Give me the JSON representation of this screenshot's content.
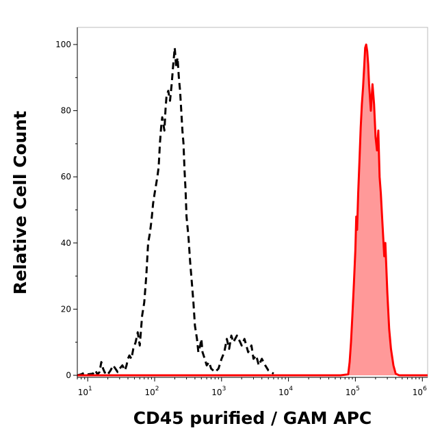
{
  "chart_data": {
    "type": "area",
    "title": "",
    "xlabel": "CD45 purified / GAM APC",
    "ylabel": "Relative Cell Count",
    "x_scale": "log",
    "xlim": [
      7,
      1200000
    ],
    "ylim": [
      0,
      100
    ],
    "grid": false,
    "x_ticks": [
      {
        "value": 10,
        "base": "10",
        "exp": "1"
      },
      {
        "value": 100,
        "base": "10",
        "exp": "2"
      },
      {
        "value": 1000,
        "base": "10",
        "exp": "3"
      },
      {
        "value": 10000,
        "base": "10",
        "exp": "4"
      },
      {
        "value": 100000,
        "base": "10",
        "exp": "5"
      },
      {
        "value": 1000000,
        "base": "10",
        "exp": "6"
      }
    ],
    "y_ticks": [
      {
        "value": 0,
        "label": "0"
      },
      {
        "value": 20,
        "label": "20"
      },
      {
        "value": 40,
        "label": "40"
      },
      {
        "value": 60,
        "label": "60"
      },
      {
        "value": 80,
        "label": "80"
      },
      {
        "value": 100,
        "label": "100"
      }
    ],
    "series": [
      {
        "style": "dashed",
        "color": "#000000",
        "fill": "none",
        "points": [
          [
            7,
            0
          ],
          [
            8,
            0.3
          ],
          [
            9,
            0.8
          ],
          [
            10,
            0.3
          ],
          [
            12,
            0.5
          ],
          [
            13,
            1.5
          ],
          [
            14,
            0.3
          ],
          [
            15,
            1
          ],
          [
            16,
            4
          ],
          [
            17,
            2
          ],
          [
            18,
            0.8
          ],
          [
            19,
            1
          ],
          [
            20,
            0.3
          ],
          [
            22,
            1.5
          ],
          [
            24,
            3
          ],
          [
            26,
            2
          ],
          [
            28,
            1
          ],
          [
            30,
            2
          ],
          [
            33,
            3
          ],
          [
            36,
            1.5
          ],
          [
            38,
            3
          ],
          [
            40,
            5
          ],
          [
            42,
            6
          ],
          [
            45,
            5
          ],
          [
            48,
            8
          ],
          [
            52,
            10
          ],
          [
            56,
            13
          ],
          [
            60,
            9
          ],
          [
            65,
            18
          ],
          [
            70,
            22
          ],
          [
            75,
            30
          ],
          [
            80,
            40
          ],
          [
            85,
            43
          ],
          [
            90,
            47
          ],
          [
            95,
            52
          ],
          [
            100,
            55
          ],
          [
            110,
            60
          ],
          [
            115,
            63
          ],
          [
            120,
            70
          ],
          [
            125,
            75
          ],
          [
            130,
            78
          ],
          [
            140,
            74
          ],
          [
            145,
            80
          ],
          [
            150,
            84
          ],
          [
            160,
            86
          ],
          [
            170,
            83
          ],
          [
            180,
            88
          ],
          [
            190,
            94
          ],
          [
            200,
            99
          ],
          [
            210,
            93
          ],
          [
            220,
            96
          ],
          [
            230,
            90
          ],
          [
            240,
            86
          ],
          [
            250,
            80
          ],
          [
            260,
            74
          ],
          [
            270,
            70
          ],
          [
            280,
            62
          ],
          [
            290,
            56
          ],
          [
            300,
            48
          ],
          [
            320,
            42
          ],
          [
            340,
            34
          ],
          [
            360,
            28
          ],
          [
            380,
            22
          ],
          [
            400,
            15
          ],
          [
            430,
            11
          ],
          [
            450,
            7
          ],
          [
            480,
            9
          ],
          [
            500,
            11
          ],
          [
            520,
            7
          ],
          [
            560,
            5
          ],
          [
            600,
            3
          ],
          [
            650,
            4
          ],
          [
            700,
            2
          ],
          [
            800,
            1
          ],
          [
            900,
            2
          ],
          [
            1000,
            5
          ],
          [
            1100,
            7
          ],
          [
            1200,
            11
          ],
          [
            1300,
            8
          ],
          [
            1400,
            12
          ],
          [
            1500,
            10
          ],
          [
            1700,
            12
          ],
          [
            1900,
            10
          ],
          [
            2000,
            9
          ],
          [
            2200,
            11
          ],
          [
            2500,
            7
          ],
          [
            2800,
            9
          ],
          [
            3000,
            5
          ],
          [
            3300,
            6
          ],
          [
            3600,
            3
          ],
          [
            4000,
            5
          ],
          [
            4500,
            3
          ],
          [
            5000,
            1.5
          ],
          [
            6000,
            0.5
          ]
        ]
      },
      {
        "style": "solid",
        "color": "#ff0000",
        "fill": "#ff9999",
        "points": [
          [
            7,
            0
          ],
          [
            60000,
            0
          ],
          [
            78000,
            0.3
          ],
          [
            82000,
            4
          ],
          [
            86000,
            10
          ],
          [
            90000,
            18
          ],
          [
            95000,
            28
          ],
          [
            100000,
            38
          ],
          [
            103000,
            48
          ],
          [
            106000,
            44
          ],
          [
            110000,
            55
          ],
          [
            115000,
            65
          ],
          [
            120000,
            75
          ],
          [
            125000,
            82
          ],
          [
            130000,
            87
          ],
          [
            135000,
            93
          ],
          [
            140000,
            99
          ],
          [
            145000,
            100
          ],
          [
            150000,
            98
          ],
          [
            155000,
            94
          ],
          [
            160000,
            88
          ],
          [
            170000,
            80
          ],
          [
            180000,
            88
          ],
          [
            190000,
            82
          ],
          [
            200000,
            72
          ],
          [
            210000,
            68
          ],
          [
            220000,
            74
          ],
          [
            230000,
            60
          ],
          [
            240000,
            55
          ],
          [
            250000,
            48
          ],
          [
            260000,
            42
          ],
          [
            270000,
            36
          ],
          [
            280000,
            40
          ],
          [
            300000,
            25
          ],
          [
            320000,
            14
          ],
          [
            340000,
            8
          ],
          [
            370000,
            3
          ],
          [
            400000,
            0.5
          ],
          [
            450000,
            0
          ],
          [
            1200000,
            0
          ]
        ]
      }
    ]
  }
}
